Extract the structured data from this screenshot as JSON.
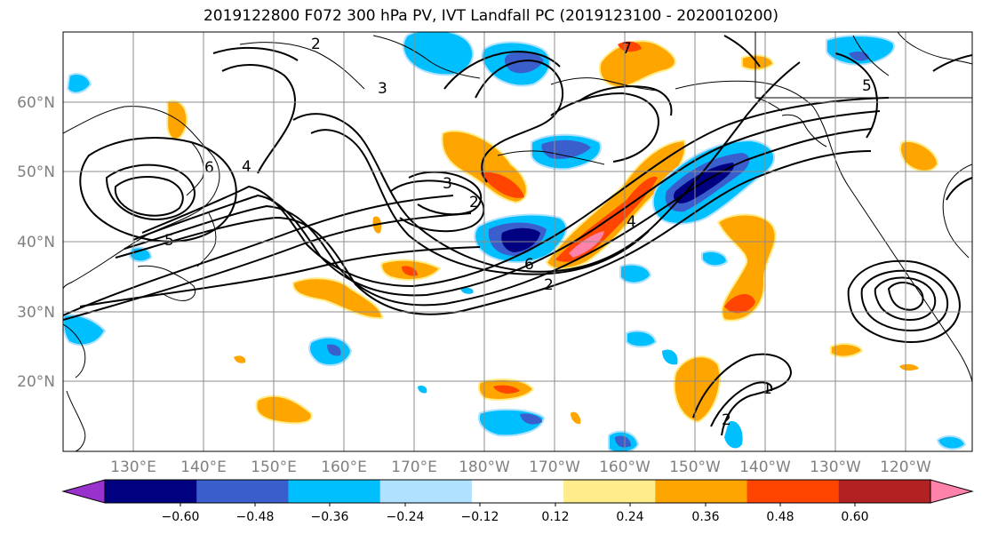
{
  "title": "2019122800 F072 300 hPa PV, IVT Landfall PC (2019123100 - 2020010200)",
  "lat_labels": [
    "60°N",
    "50°N",
    "40°N",
    "30°N",
    "20°N"
  ],
  "lon_labels": [
    "130°E",
    "140°E",
    "150°E",
    "160°E",
    "170°E",
    "180°W",
    "170°W",
    "160°W",
    "150°W",
    "140°W",
    "130°W",
    "120°W"
  ],
  "colorbar": {
    "ticks": [
      "−0.60",
      "−0.48",
      "−0.36",
      "−0.24",
      "−0.12",
      "0.12",
      "0.24",
      "0.36",
      "0.48",
      "0.60"
    ],
    "colors": [
      "#9932cc",
      "#000080",
      "#3a5fcd",
      "#00bfff",
      "#b0e2ff",
      "#ffffff",
      "#ffec8b",
      "#ffa500",
      "#ff4500",
      "#b22222",
      "#ff82ab"
    ]
  },
  "contour_labels": [
    "2",
    "3",
    "4",
    "5",
    "6",
    "7",
    "1"
  ]
}
